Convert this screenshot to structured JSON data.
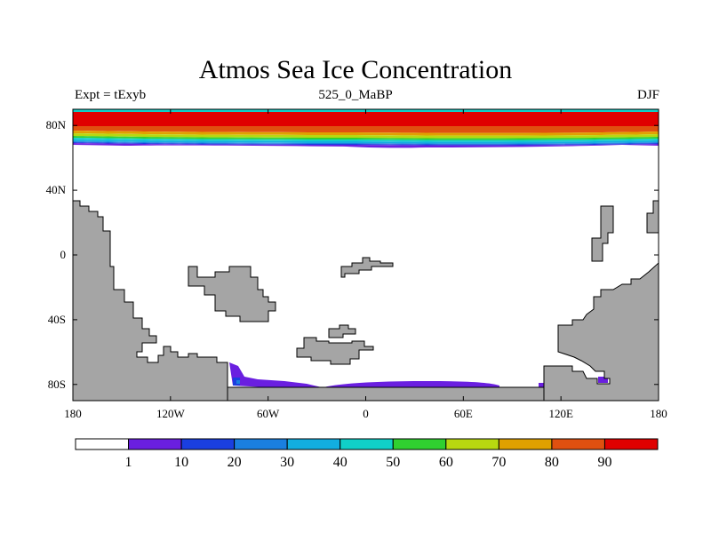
{
  "title": "Atmos Sea Ice Concentration",
  "subtitle_left": "Expt = tExyb",
  "subtitle_center": "525_0_MaBP",
  "subtitle_right": "DJF",
  "map": {
    "projection": "cylindrical-equidistant",
    "lon_range": [
      -180,
      180
    ],
    "lat_range": [
      -90,
      90
    ],
    "land_color": "#a5a5a5",
    "ocean_color": "#ffffff"
  },
  "axes": {
    "x_ticks": [
      {
        "value": -180,
        "label": "180"
      },
      {
        "value": -120,
        "label": "120W"
      },
      {
        "value": -60,
        "label": "60W"
      },
      {
        "value": 0,
        "label": "0"
      },
      {
        "value": 60,
        "label": "60E"
      },
      {
        "value": 120,
        "label": "120E"
      },
      {
        "value": 180,
        "label": "180"
      }
    ],
    "y_ticks": [
      {
        "value": 80,
        "label": "80N"
      },
      {
        "value": 40,
        "label": "40N"
      },
      {
        "value": 0,
        "label": "0"
      },
      {
        "value": -40,
        "label": "40S"
      },
      {
        "value": -80,
        "label": "80S"
      }
    ]
  },
  "colorbar": {
    "colors": [
      "#ffffff",
      "#6a1fe0",
      "#1a3fe0",
      "#1a7fe0",
      "#12aee0",
      "#10d0c8",
      "#30d030",
      "#b8d810",
      "#e0a000",
      "#e05010",
      "#e00000"
    ],
    "labels": [
      "1",
      "10",
      "20",
      "30",
      "40",
      "50",
      "60",
      "70",
      "80",
      "90"
    ]
  }
}
